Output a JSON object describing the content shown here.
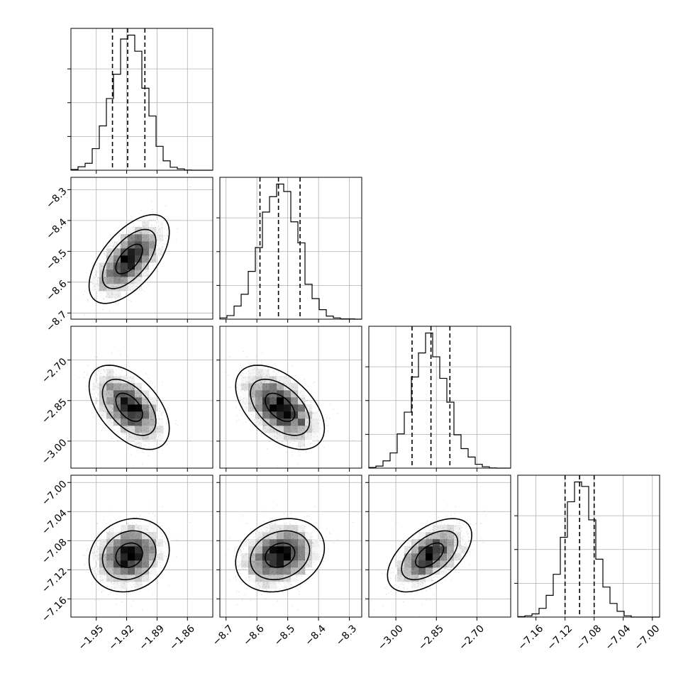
{
  "chart_data": {
    "type": "corner",
    "parameters": [
      {
        "range": [
          -1.975,
          -1.835
        ],
        "mean": -1.9175,
        "sd": 0.0165,
        "quantiles": [
          -1.934,
          -1.919,
          -1.902
        ],
        "ticks": [
          -1.95,
          -1.92,
          -1.89,
          -1.86
        ],
        "tick_labels": [
          "−1.95",
          "−1.92",
          "−1.89",
          "−1.86"
        ]
      },
      {
        "range": [
          -8.72,
          -8.26
        ],
        "mean": -8.525,
        "sd": 0.06,
        "quantiles": [
          -8.59,
          -8.53,
          -8.46
        ],
        "ticks": [
          -8.7,
          -8.6,
          -8.5,
          -8.4,
          -8.3
        ],
        "tick_labels": [
          "−8.7",
          "−8.6",
          "−8.5",
          "−8.4",
          "−8.3"
        ]
      },
      {
        "range": [
          -3.1,
          -2.575
        ],
        "mean": -2.875,
        "sd": 0.065,
        "quantiles": [
          -2.94,
          -2.87,
          -2.8
        ],
        "ticks": [
          -3.0,
          -2.85,
          -2.7
        ],
        "tick_labels": [
          "−3.00",
          "−2.85",
          "−2.70"
        ]
      },
      {
        "range": [
          -7.185,
          -6.99
        ],
        "mean": -7.1,
        "sd": 0.021,
        "quantiles": [
          -7.12,
          -7.1,
          -7.08
        ],
        "ticks": [
          -7.16,
          -7.12,
          -7.08,
          -7.04,
          -7.0
        ],
        "tick_labels": [
          "−7.16",
          "−7.12",
          "−7.08",
          "−7.04",
          "−7.00"
        ]
      }
    ],
    "correlations": [
      {
        "pair": [
          0,
          1
        ],
        "rho": 0.6
      },
      {
        "pair": [
          0,
          2
        ],
        "rho": -0.5
      },
      {
        "pair": [
          1,
          2
        ],
        "rho": -0.5
      },
      {
        "pair": [
          0,
          3
        ],
        "rho": 0.15
      },
      {
        "pair": [
          1,
          3
        ],
        "rho": 0.2
      },
      {
        "pair": [
          2,
          3
        ],
        "rho": 0.55
      }
    ],
    "histogram_bins": 20,
    "density_bins": 20,
    "contour_levels_sigma": [
      0.5,
      1.0,
      1.5
    ],
    "scatter_points_per_panel": 1200,
    "scatter_color": "#000000",
    "grid": true,
    "colors": {
      "frame": "#000000",
      "grid": "#b0b0b0",
      "background": "#ffffff"
    }
  }
}
